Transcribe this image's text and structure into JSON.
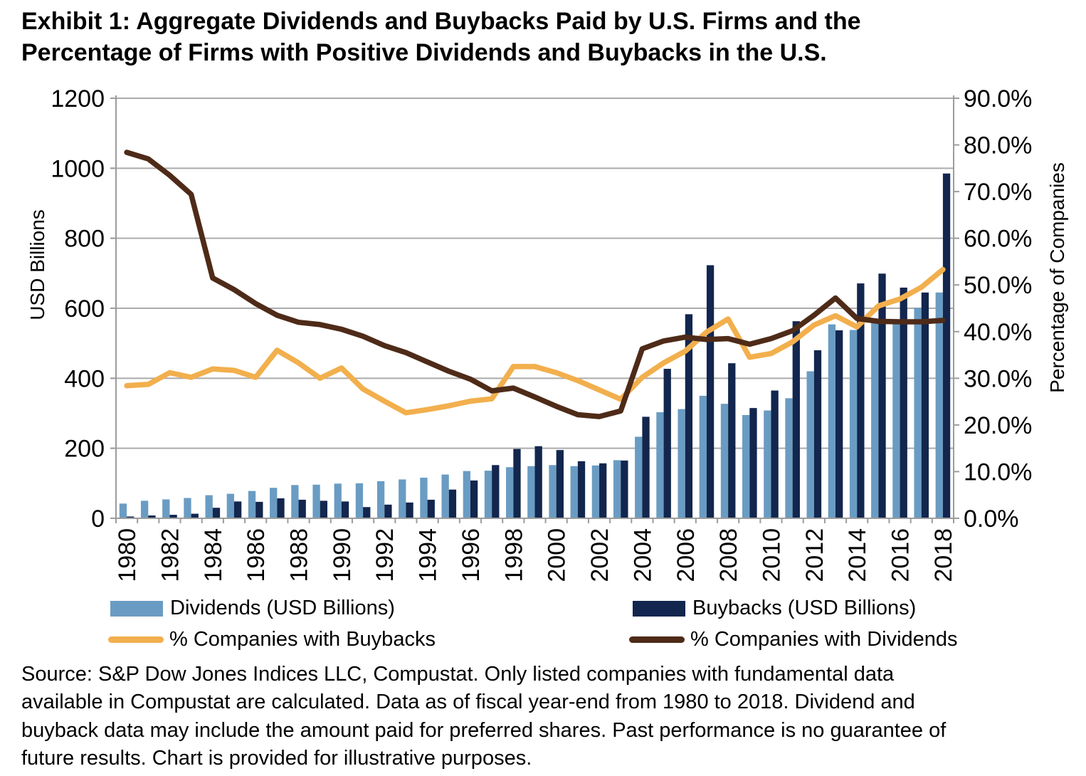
{
  "title": {
    "line1": "Exhibit 1: Aggregate Dividends and Buybacks Paid by U.S. Firms and the",
    "line2": "Percentage of Firms with Positive Dividends and Buybacks in the U.S."
  },
  "colors": {
    "dividends_bar": "#6A9CC3",
    "buybacks_bar": "#12264E",
    "pct_buybacks_line": "#F2AF4D",
    "pct_dividends_line": "#4E2B18",
    "gridline": "#ABABAB",
    "axis": "#9C9C9C",
    "text": "#000000"
  },
  "chart_data": {
    "type": "bar",
    "subtype": "combo-bar-line-dual-axis",
    "title": "Aggregate Dividends and Buybacks Paid by U.S. Firms and the Percentage of Firms with Positive Dividends and Buybacks in the U.S.",
    "grid": "horizontal-on",
    "legend_position": "bottom",
    "categories": [
      "1980",
      "1981",
      "1982",
      "1983",
      "1984",
      "1985",
      "1986",
      "1987",
      "1988",
      "1989",
      "1990",
      "1991",
      "1992",
      "1993",
      "1994",
      "1995",
      "1996",
      "1997",
      "1998",
      "1999",
      "2000",
      "2001",
      "2002",
      "2003",
      "2004",
      "2005",
      "2006",
      "2007",
      "2008",
      "2009",
      "2010",
      "2011",
      "2012",
      "2013",
      "2014",
      "2015",
      "2016",
      "2017",
      "2018"
    ],
    "x_axis": {
      "label_every": 2,
      "tick_labels_shown": [
        "1980",
        "1982",
        "1984",
        "1986",
        "1988",
        "1990",
        "1992",
        "1994",
        "1996",
        "1998",
        "2000",
        "2002",
        "2004",
        "2006",
        "2008",
        "2010",
        "2012",
        "2014",
        "2016",
        "2018"
      ]
    },
    "left_axis": {
      "label": "USD Billions",
      "min": 0,
      "max": 1200,
      "step": 200,
      "tick_labels": [
        "0",
        "200",
        "400",
        "600",
        "800",
        "1000",
        "1200"
      ]
    },
    "right_axis": {
      "label": "Percentage of Companies",
      "min": 0,
      "max": 90,
      "step": 10,
      "tick_labels": [
        "0.0%",
        "10.0%",
        "20.0%",
        "30.0%",
        "40.0%",
        "50.0%",
        "60.0%",
        "70.0%",
        "80.0%",
        "90.0%"
      ]
    },
    "series": [
      {
        "name": "Dividends (USD Billions)",
        "type": "bar",
        "axis": "left",
        "color": "#6A9CC3",
        "values": [
          42,
          50,
          54,
          58,
          66,
          70,
          78,
          87,
          95,
          96,
          99,
          100,
          106,
          111,
          116,
          125,
          135,
          136,
          146,
          149,
          152,
          149,
          151,
          166,
          233,
          303,
          312,
          350,
          327,
          295,
          308,
          343,
          420,
          554,
          538,
          558,
          557,
          601,
          645
        ]
      },
      {
        "name": "Buybacks (USD Billions)",
        "type": "bar",
        "axis": "left",
        "color": "#12264E",
        "values": [
          5,
          8,
          10,
          13,
          30,
          48,
          47,
          57,
          53,
          50,
          48,
          32,
          39,
          45,
          53,
          82,
          108,
          152,
          198,
          206,
          195,
          163,
          157,
          165,
          290,
          427,
          583,
          723,
          443,
          315,
          365,
          563,
          480,
          537,
          671,
          699,
          659,
          645,
          985
        ]
      },
      {
        "name": "% Companies with Buybacks",
        "type": "line",
        "axis": "right",
        "color": "#F2AF4D",
        "values": [
          28.4,
          28.7,
          31.2,
          30.2,
          32.0,
          31.7,
          30.2,
          36.0,
          33.3,
          30.0,
          32.2,
          27.7,
          25.1,
          22.6,
          23.3,
          24.1,
          25.1,
          25.6,
          32.5,
          32.5,
          31.2,
          29.5,
          27.5,
          25.5,
          30.2,
          33.3,
          35.8,
          39.9,
          42.7,
          34.5,
          35.3,
          37.8,
          41.4,
          43.4,
          41.0,
          45.5,
          47.0,
          49.5,
          53.3
        ]
      },
      {
        "name": "% Companies with Dividends",
        "type": "line",
        "axis": "right",
        "color": "#4E2B18",
        "values": [
          78.4,
          77.0,
          73.5,
          69.4,
          51.5,
          49.0,
          46.0,
          43.5,
          42.0,
          41.5,
          40.5,
          39.0,
          37.0,
          35.5,
          33.5,
          31.5,
          29.8,
          27.3,
          27.9,
          26.0,
          24.0,
          22.2,
          21.8,
          23.0,
          36.3,
          38.0,
          38.8,
          38.3,
          38.5,
          37.3,
          38.5,
          40.2,
          43.5,
          47.2,
          42.8,
          42.2,
          42.1,
          42.1,
          42.4
        ]
      }
    ]
  },
  "legend": {
    "items": [
      {
        "label": "Dividends (USD Billions)",
        "swatch": "bar",
        "color": "#6A9CC3"
      },
      {
        "label": "Buybacks (USD Billions)",
        "swatch": "bar",
        "color": "#12264E"
      },
      {
        "label": "% Companies with Buybacks",
        "swatch": "line",
        "color": "#F2AF4D"
      },
      {
        "label": "% Companies with Dividends",
        "swatch": "line",
        "color": "#4E2B18"
      }
    ]
  },
  "source": {
    "lines": [
      "Source: S&P Dow Jones Indices LLC, Compustat.  Only listed companies with fundamental data",
      "available in Compustat are calculated.  Data as of fiscal year-end from 1980 to 2018.  Dividend and",
      "buyback data may include the amount paid for preferred shares.  Past performance is no guarantee of",
      "future results.  Chart is provided for illustrative purposes."
    ]
  }
}
